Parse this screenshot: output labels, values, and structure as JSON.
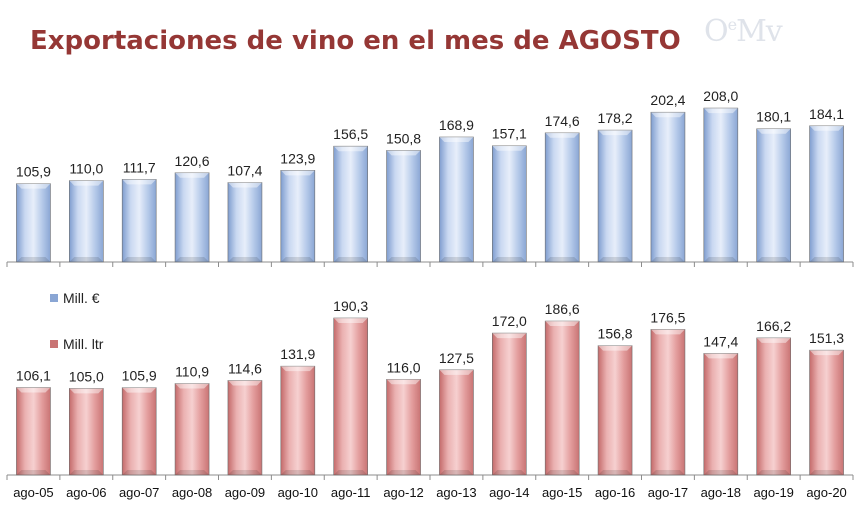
{
  "title": "Exportaciones de vino en el mes de AGOSTO",
  "logo": {
    "main": "O",
    "sup": "e",
    "tail": "Mv"
  },
  "chart_data": {
    "type": "bar",
    "categories": [
      "ago-05",
      "ago-06",
      "ago-07",
      "ago-08",
      "ago-09",
      "ago-10",
      "ago-11",
      "ago-12",
      "ago-13",
      "ago-14",
      "ago-15",
      "ago-16",
      "ago-17",
      "ago-18",
      "ago-19",
      "ago-20"
    ],
    "series": [
      {
        "name": "Mill. €",
        "color": "#a9c1e6",
        "values": [
          105.9,
          110.0,
          111.7,
          120.6,
          107.4,
          123.9,
          156.5,
          150.8,
          168.9,
          157.1,
          174.6,
          178.2,
          202.4,
          208.0,
          180.1,
          184.1
        ],
        "labels": [
          "105,9",
          "110,0",
          "111,7",
          "120,6",
          "107,4",
          "123,9",
          "156,5",
          "150,8",
          "168,9",
          "157,1",
          "174,6",
          "178,2",
          "202,4",
          "208,0",
          "180,1",
          "184,1"
        ]
      },
      {
        "name": "Mill. ltr",
        "color": "#dd8f8f",
        "values": [
          106.1,
          105.0,
          105.9,
          110.9,
          114.6,
          131.9,
          190.3,
          116.0,
          127.5,
          172.0,
          186.6,
          156.8,
          176.5,
          147.4,
          166.2,
          151.3
        ],
        "labels": [
          "106,1",
          "105,0",
          "105,9",
          "110,9",
          "114,6",
          "131,9",
          "190,3",
          "116,0",
          "127,5",
          "172,0",
          "186,6",
          "156,8",
          "176,5",
          "147,4",
          "166,2",
          "151,3"
        ]
      }
    ],
    "legend_position": "left",
    "grid": false
  }
}
